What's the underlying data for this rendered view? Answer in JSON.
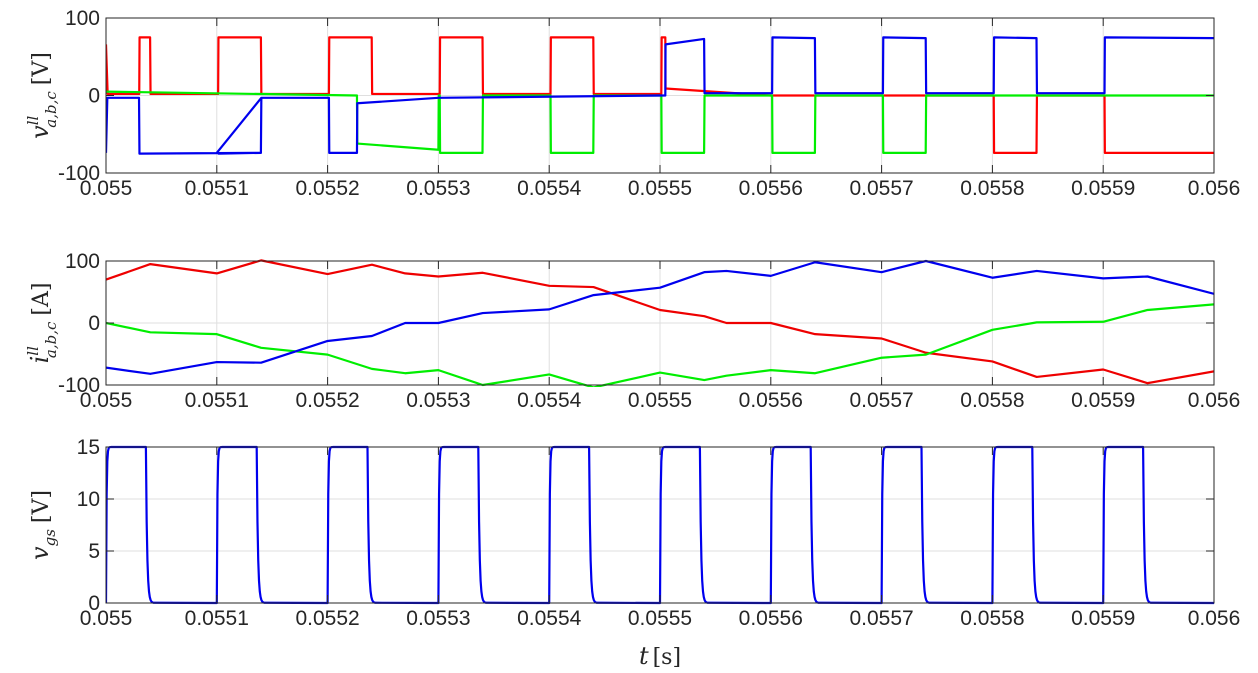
{
  "chart_data": [
    {
      "type": "line",
      "ylabel": "v^{ll}_{a,b,c} [V]",
      "ylabel_parts": {
        "sym": "v",
        "sup": "ll",
        "sub": "a,b,c",
        "unit": "[V]"
      },
      "xlim": [
        0.055,
        0.056
      ],
      "ylim": [
        -100,
        100
      ],
      "x_ticks": [
        "0.055",
        "0.0551",
        "0.0552",
        "0.0553",
        "0.0554",
        "0.0555",
        "0.0556",
        "0.0557",
        "0.0558",
        "0.0559",
        "0.056"
      ],
      "y_ticks": [
        "-100",
        "0",
        "100"
      ],
      "grid": true,
      "series": [
        {
          "color": "#ff0000",
          "points": [
            [
              0.055,
              66
            ],
            [
              0.0550015,
              2
            ],
            [
              0.05503,
              2
            ],
            [
              0.0550303,
              75
            ],
            [
              0.0550398,
              75
            ],
            [
              0.0550402,
              2
            ],
            [
              0.0551,
              2
            ],
            [
              0.0551012,
              2
            ],
            [
              0.0551015,
              75
            ],
            [
              0.0551398,
              75
            ],
            [
              0.0551402,
              2
            ],
            [
              0.0552,
              2
            ],
            [
              0.0552012,
              2
            ],
            [
              0.0552015,
              75
            ],
            [
              0.0552398,
              75
            ],
            [
              0.0552402,
              2
            ],
            [
              0.0553,
              2
            ],
            [
              0.0553012,
              2
            ],
            [
              0.0553015,
              75
            ],
            [
              0.0553398,
              75
            ],
            [
              0.0553402,
              2
            ],
            [
              0.0554,
              2
            ],
            [
              0.0554012,
              2
            ],
            [
              0.0554015,
              75
            ],
            [
              0.0554398,
              75
            ],
            [
              0.0554402,
              2
            ],
            [
              0.0555,
              2
            ],
            [
              0.0555012,
              2
            ],
            [
              0.0555015,
              75
            ],
            [
              0.0555048,
              75
            ],
            [
              0.055505,
              9
            ],
            [
              0.0556,
              0
            ],
            [
              0.0558,
              0
            ],
            [
              0.0558012,
              0
            ],
            [
              0.0558015,
              -74
            ],
            [
              0.0558398,
              -74
            ],
            [
              0.0558402,
              0
            ],
            [
              0.0559,
              0
            ],
            [
              0.0559012,
              0
            ],
            [
              0.0559015,
              -74
            ],
            [
              0.056,
              -74
            ]
          ]
        },
        {
          "color": "#00ee00",
          "points": [
            [
              0.055,
              5
            ],
            [
              0.0552265,
              0
            ],
            [
              0.0552268,
              -62
            ],
            [
              0.0553,
              -70
            ],
            [
              0.0553003,
              0
            ],
            [
              0.0553012,
              0
            ],
            [
              0.0553015,
              -74
            ],
            [
              0.0553398,
              -74
            ],
            [
              0.0553402,
              0
            ],
            [
              0.0554,
              0
            ],
            [
              0.0554012,
              0
            ],
            [
              0.0554015,
              -74
            ],
            [
              0.0554398,
              -74
            ],
            [
              0.0554402,
              0
            ],
            [
              0.0555,
              0
            ],
            [
              0.0555012,
              0
            ],
            [
              0.0555015,
              -74
            ],
            [
              0.0555398,
              -74
            ],
            [
              0.0555402,
              0
            ],
            [
              0.0556,
              0
            ],
            [
              0.0556012,
              0
            ],
            [
              0.0556015,
              -74
            ],
            [
              0.0556398,
              -74
            ],
            [
              0.0556402,
              0
            ],
            [
              0.0557,
              0
            ],
            [
              0.0557012,
              0
            ],
            [
              0.0557015,
              -74
            ],
            [
              0.0557398,
              -74
            ],
            [
              0.0557402,
              0
            ],
            [
              0.056,
              0
            ]
          ]
        },
        {
          "color": "#0000ee",
          "points": [
            [
              0.055,
              -74
            ],
            [
              0.0550012,
              -3
            ],
            [
              0.0550298,
              -3
            ],
            [
              0.0550302,
              -75
            ],
            [
              0.0551398,
              -74
            ],
            [
              0.0551402,
              -3
            ],
            [
              0.0551,
              -74
            ],
            [
              0.0551012,
              -74
            ],
            [
              0.0551015,
              -75
            ],
            [
              0.0551398,
              -74
            ],
            [
              0.0551402,
              -3
            ],
            [
              0.0552,
              -3
            ],
            [
              0.0552012,
              -3
            ],
            [
              0.0552015,
              -74
            ],
            [
              0.0552265,
              -74
            ],
            [
              0.0552268,
              -10
            ],
            [
              0.0553,
              -3
            ],
            [
              0.0555,
              0
            ],
            [
              0.0555048,
              0
            ],
            [
              0.055505,
              66
            ],
            [
              0.0555398,
              73
            ],
            [
              0.0555402,
              3
            ],
            [
              0.0556,
              3
            ],
            [
              0.0556012,
              3
            ],
            [
              0.0556015,
              75
            ],
            [
              0.0556398,
              74
            ],
            [
              0.0556402,
              3
            ],
            [
              0.0557,
              3
            ],
            [
              0.0557012,
              3
            ],
            [
              0.0557015,
              75
            ],
            [
              0.0557398,
              74
            ],
            [
              0.0557402,
              3
            ],
            [
              0.0558,
              3
            ],
            [
              0.0558012,
              3
            ],
            [
              0.0558015,
              75
            ],
            [
              0.0558398,
              74
            ],
            [
              0.0558402,
              3
            ],
            [
              0.0559,
              3
            ],
            [
              0.0559012,
              3
            ],
            [
              0.0559015,
              75
            ],
            [
              0.056,
              74
            ]
          ]
        }
      ]
    },
    {
      "type": "line",
      "ylabel": "i^{ll}_{a,b,c} [A]",
      "ylabel_parts": {
        "sym": "i",
        "sup": "ll",
        "sub": "a,b,c",
        "unit": "[A]"
      },
      "xlim": [
        0.055,
        0.056
      ],
      "ylim": [
        -100,
        100
      ],
      "x_ticks": [
        "0.055",
        "0.0551",
        "0.0552",
        "0.0553",
        "0.0554",
        "0.0555",
        "0.0556",
        "0.0557",
        "0.0558",
        "0.0559",
        "0.056"
      ],
      "y_ticks": [
        "-100",
        "0",
        "100"
      ],
      "grid": true,
      "series": [
        {
          "color": "#ee0000",
          "points": [
            [
              0.055,
              70
            ],
            [
              0.05504,
              95
            ],
            [
              0.0551,
              80
            ],
            [
              0.05514,
              101
            ],
            [
              0.0552,
              79
            ],
            [
              0.05524,
              94
            ],
            [
              0.05527,
              80
            ],
            [
              0.0553,
              75
            ],
            [
              0.05534,
              81
            ],
            [
              0.0554,
              60
            ],
            [
              0.05544,
              58
            ],
            [
              0.0555,
              21
            ],
            [
              0.05554,
              11
            ],
            [
              0.05556,
              0
            ],
            [
              0.0556,
              0
            ],
            [
              0.05564,
              -18
            ],
            [
              0.0557,
              -25
            ],
            [
              0.05574,
              -48
            ],
            [
              0.0558,
              -62
            ],
            [
              0.05584,
              -87
            ],
            [
              0.0559,
              -75
            ],
            [
              0.05594,
              -97
            ],
            [
              0.056,
              -78
            ]
          ]
        },
        {
          "color": "#00ee00",
          "points": [
            [
              0.055,
              0
            ],
            [
              0.05504,
              -15
            ],
            [
              0.0551,
              -18
            ],
            [
              0.05514,
              -40
            ],
            [
              0.0552,
              -51
            ],
            [
              0.05524,
              -74
            ],
            [
              0.05527,
              -81
            ],
            [
              0.0553,
              -76
            ],
            [
              0.05534,
              -100
            ],
            [
              0.0554,
              -83
            ],
            [
              0.05544,
              -104
            ],
            [
              0.0555,
              -80
            ],
            [
              0.05554,
              -92
            ],
            [
              0.05556,
              -85
            ],
            [
              0.0556,
              -76
            ],
            [
              0.05564,
              -81
            ],
            [
              0.0557,
              -56
            ],
            [
              0.05574,
              -51
            ],
            [
              0.0558,
              -11
            ],
            [
              0.05584,
              1
            ],
            [
              0.0559,
              2
            ],
            [
              0.05594,
              21
            ],
            [
              0.056,
              30
            ]
          ]
        },
        {
          "color": "#0000ee",
          "points": [
            [
              0.055,
              -72
            ],
            [
              0.05504,
              -82
            ],
            [
              0.0551,
              -63
            ],
            [
              0.05514,
              -64
            ],
            [
              0.0552,
              -29
            ],
            [
              0.05524,
              -21
            ],
            [
              0.05527,
              0
            ],
            [
              0.0553,
              0
            ],
            [
              0.05534,
              16
            ],
            [
              0.0554,
              22
            ],
            [
              0.05544,
              45
            ],
            [
              0.0555,
              57
            ],
            [
              0.05554,
              82
            ],
            [
              0.05556,
              84
            ],
            [
              0.0556,
              76
            ],
            [
              0.05564,
              98
            ],
            [
              0.0557,
              82
            ],
            [
              0.05574,
              100
            ],
            [
              0.0558,
              73
            ],
            [
              0.05584,
              84
            ],
            [
              0.0559,
              72
            ],
            [
              0.05594,
              75
            ],
            [
              0.056,
              47
            ]
          ]
        }
      ]
    },
    {
      "type": "line",
      "ylabel": "v_{gs} [V]",
      "ylabel_parts": {
        "sym": "v",
        "sup": "",
        "sub": "gs",
        "unit": "[V]"
      },
      "xlabel": "t [s]",
      "xlabel_parts": {
        "sym": "t",
        "unit": "[s]"
      },
      "xlim": [
        0.055,
        0.056
      ],
      "ylim": [
        0,
        15
      ],
      "x_ticks": [
        "0.055",
        "0.0551",
        "0.0552",
        "0.0553",
        "0.0554",
        "0.0555",
        "0.0556",
        "0.0557",
        "0.0558",
        "0.0559",
        "0.056"
      ],
      "y_ticks": [
        "0",
        "5",
        "10",
        "15"
      ],
      "grid": true,
      "period": 0.0001,
      "on_time": 3.6e-05,
      "high": 15,
      "low": 0,
      "series": [
        {
          "color": "#0000ee",
          "shape": "gate-pulse"
        }
      ]
    }
  ]
}
